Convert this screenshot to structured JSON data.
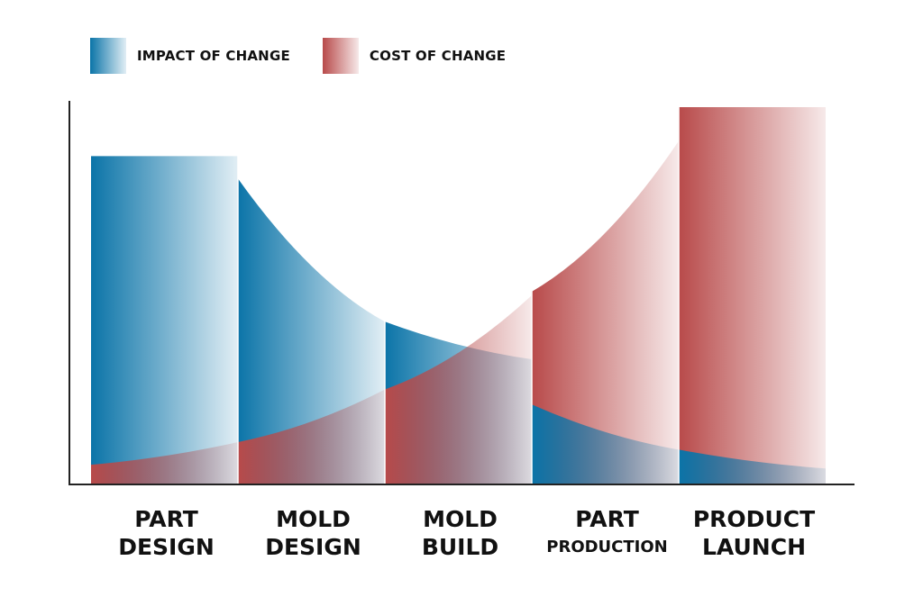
{
  "chart_data": {
    "type": "area",
    "title": "",
    "xlabel": "",
    "ylabel": "",
    "legend_position": "top-left",
    "grid": false,
    "ylim": [
      0,
      100
    ],
    "categories": [
      {
        "line1": "PART",
        "line2": "DESIGN"
      },
      {
        "line1": "MOLD",
        "line2": "DESIGN"
      },
      {
        "line1": "MOLD",
        "line2": "BUILD"
      },
      {
        "line1": "PART",
        "line2": "PRODUCTION"
      },
      {
        "line1": "PRODUCT",
        "line2": "LAUNCH"
      }
    ],
    "series": [
      {
        "name": "IMPACT OF CHANGE",
        "color": "#0b74a8",
        "segments": [
          {
            "start": 87,
            "end": 87
          },
          {
            "start": 81,
            "end": 43
          },
          {
            "start": 43,
            "end": 33
          },
          {
            "start": 21,
            "end": 9
          },
          {
            "start": 9,
            "end": 4
          }
        ]
      },
      {
        "name": "COST OF CHANGE",
        "color": "#b84a4a",
        "segments": [
          {
            "start": 5,
            "end": 11
          },
          {
            "start": 11,
            "end": 25
          },
          {
            "start": 25,
            "end": 50
          },
          {
            "start": 51,
            "end": 91
          },
          {
            "start": 100,
            "end": 100
          }
        ]
      }
    ]
  }
}
